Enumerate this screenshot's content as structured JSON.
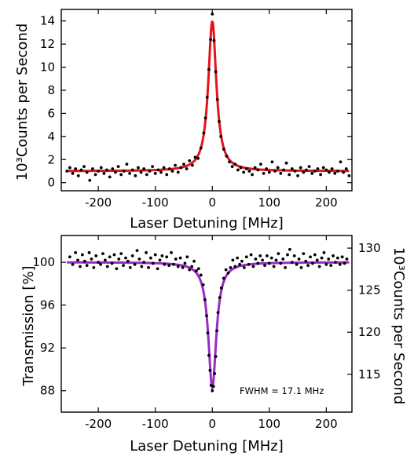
{
  "chart_data": [
    {
      "type": "scatter",
      "xlabel": "Laser Detuning [MHz]",
      "ylabel": "10³Counts per Second",
      "xlim": [
        -265,
        245
      ],
      "ylim": [
        -0.7,
        15
      ],
      "xticks": [
        -200,
        -100,
        0,
        100,
        200
      ],
      "xtick_labels": [
        "-200",
        "-100",
        "0",
        "100",
        "200"
      ],
      "yticks": [
        0,
        2,
        4,
        6,
        8,
        10,
        12,
        14
      ],
      "ytick_labels": [
        "0",
        "2",
        "4",
        "6",
        "8",
        "10",
        "12",
        "14"
      ],
      "grid": false,
      "fit": {
        "model": "lorentzian",
        "center": 0,
        "fwhm": 17.1,
        "baseline": 1.0,
        "peak": 14.0,
        "color": "#e3141b"
      },
      "series": [
        {
          "points": [
            [
              -255,
              1.0
            ],
            [
              -250,
              1.3
            ],
            [
              -245,
              0.8
            ],
            [
              -240,
              1.2
            ],
            [
              -235,
              0.6
            ],
            [
              -230,
              1.1
            ],
            [
              -225,
              1.4
            ],
            [
              -220,
              0.9
            ],
            [
              -215,
              0.2
            ],
            [
              -210,
              1.2
            ],
            [
              -205,
              0.7
            ],
            [
              -200,
              1.0
            ],
            [
              -195,
              1.3
            ],
            [
              -190,
              0.8
            ],
            [
              -185,
              1.1
            ],
            [
              -180,
              0.5
            ],
            [
              -175,
              1.2
            ],
            [
              -170,
              0.9
            ],
            [
              -165,
              1.4
            ],
            [
              -160,
              0.7
            ],
            [
              -155,
              1.0
            ],
            [
              -150,
              1.6
            ],
            [
              -145,
              0.8
            ],
            [
              -140,
              1.1
            ],
            [
              -135,
              0.6
            ],
            [
              -130,
              1.3
            ],
            [
              -125,
              0.9
            ],
            [
              -120,
              1.2
            ],
            [
              -115,
              0.7
            ],
            [
              -110,
              1.0
            ],
            [
              -105,
              1.4
            ],
            [
              -100,
              0.8
            ],
            [
              -95,
              1.1
            ],
            [
              -90,
              0.9
            ],
            [
              -85,
              1.3
            ],
            [
              -80,
              0.7
            ],
            [
              -75,
              1.2
            ],
            [
              -70,
              1.0
            ],
            [
              -65,
              1.5
            ],
            [
              -60,
              0.9
            ],
            [
              -55,
              1.3
            ],
            [
              -50,
              1.6
            ],
            [
              -45,
              1.2
            ],
            [
              -40,
              1.9
            ],
            [
              -35,
              1.5
            ],
            [
              -30,
              2.2
            ],
            [
              -25,
              2.1
            ],
            [
              -20,
              3.0
            ],
            [
              -15,
              4.3
            ],
            [
              -12,
              5.6
            ],
            [
              -9,
              7.4
            ],
            [
              -6,
              9.8
            ],
            [
              -3,
              12.4
            ],
            [
              0,
              14.6
            ],
            [
              3,
              12.3
            ],
            [
              6,
              9.6
            ],
            [
              9,
              7.2
            ],
            [
              12,
              5.3
            ],
            [
              15,
              4.0
            ],
            [
              20,
              2.9
            ],
            [
              25,
              2.3
            ],
            [
              30,
              1.8
            ],
            [
              35,
              1.4
            ],
            [
              40,
              1.6
            ],
            [
              45,
              1.1
            ],
            [
              50,
              1.3
            ],
            [
              55,
              0.9
            ],
            [
              60,
              1.2
            ],
            [
              65,
              1.0
            ],
            [
              70,
              0.7
            ],
            [
              75,
              1.3
            ],
            [
              80,
              1.1
            ],
            [
              85,
              1.6
            ],
            [
              90,
              0.8
            ],
            [
              95,
              1.2
            ],
            [
              100,
              0.9
            ],
            [
              105,
              1.8
            ],
            [
              110,
              1.0
            ],
            [
              115,
              1.3
            ],
            [
              120,
              0.8
            ],
            [
              125,
              1.1
            ],
            [
              130,
              1.7
            ],
            [
              135,
              0.7
            ],
            [
              140,
              1.2
            ],
            [
              145,
              1.0
            ],
            [
              150,
              0.6
            ],
            [
              155,
              1.3
            ],
            [
              160,
              0.9
            ],
            [
              165,
              1.1
            ],
            [
              170,
              1.4
            ],
            [
              175,
              0.8
            ],
            [
              180,
              1.0
            ],
            [
              185,
              1.2
            ],
            [
              190,
              0.7
            ],
            [
              195,
              1.3
            ],
            [
              200,
              1.1
            ],
            [
              205,
              0.9
            ],
            [
              210,
              1.2
            ],
            [
              215,
              0.8
            ],
            [
              220,
              1.0
            ],
            [
              225,
              1.8
            ],
            [
              230,
              0.9
            ],
            [
              235,
              1.2
            ],
            [
              240,
              0.6
            ]
          ]
        }
      ]
    },
    {
      "type": "scatter",
      "xlabel": "Laser Detuning [MHz]",
      "ylabel": "Transmission [%]",
      "y2label": "10³Counts per Second",
      "annotation": "FWHM = 17.1 MHz",
      "xlim": [
        -265,
        245
      ],
      "ylim": [
        86.0,
        102.5
      ],
      "y2lim": [
        110.5,
        131.5
      ],
      "xticks": [
        -200,
        -100,
        0,
        100,
        200
      ],
      "xtick_labels": [
        "-200",
        "-100",
        "0",
        "100",
        "200"
      ],
      "yticks": [
        88,
        92,
        96,
        100
      ],
      "ytick_labels": [
        "88",
        "92",
        "96",
        "100"
      ],
      "y2ticks": [
        115,
        120,
        125,
        130
      ],
      "y2tick_labels": [
        "115",
        "120",
        "125",
        "130"
      ],
      "grid": false,
      "fit": {
        "model": "lorentzian",
        "center": 0,
        "fwhm": 17.1,
        "baseline": 100.0,
        "peak": 88.3,
        "color": "#9a2bc4"
      },
      "series": [
        {
          "points": [
            [
              -250,
              100.5
            ],
            [
              -245,
              99.8
            ],
            [
              -240,
              100.9
            ],
            [
              -236,
              100.2
            ],
            [
              -232,
              99.6
            ],
            [
              -228,
              100.7
            ],
            [
              -224,
              100.1
            ],
            [
              -220,
              99.7
            ],
            [
              -216,
              100.9
            ],
            [
              -212,
              100.3
            ],
            [
              -208,
              99.5
            ],
            [
              -204,
              100.6
            ],
            [
              -200,
              100.0
            ],
            [
              -196,
              99.8
            ],
            [
              -192,
              100.8
            ],
            [
              -188,
              100.2
            ],
            [
              -184,
              99.6
            ],
            [
              -180,
              100.5
            ],
            [
              -176,
              99.9
            ],
            [
              -172,
              100.7
            ],
            [
              -168,
              99.4
            ],
            [
              -164,
              100.3
            ],
            [
              -160,
              100.8
            ],
            [
              -156,
              99.7
            ],
            [
              -152,
              100.4
            ],
            [
              -148,
              100.1
            ],
            [
              -144,
              99.5
            ],
            [
              -140,
              100.6
            ],
            [
              -136,
              99.8
            ],
            [
              -132,
              101.1
            ],
            [
              -128,
              100.3
            ],
            [
              -124,
              99.6
            ],
            [
              -120,
              100.0
            ],
            [
              -116,
              100.9
            ],
            [
              -112,
              99.5
            ],
            [
              -108,
              100.4
            ],
            [
              -104,
              99.9
            ],
            [
              -100,
              100.7
            ],
            [
              -96,
              99.4
            ],
            [
              -92,
              100.2
            ],
            [
              -88,
              100.6
            ],
            [
              -84,
              99.8
            ],
            [
              -80,
              100.5
            ],
            [
              -76,
              99.7
            ],
            [
              -72,
              100.9
            ],
            [
              -68,
              99.8
            ],
            [
              -64,
              100.3
            ],
            [
              -60,
              99.6
            ],
            [
              -56,
              100.4
            ],
            [
              -52,
              99.5
            ],
            [
              -48,
              99.9
            ],
            [
              -44,
              100.5
            ],
            [
              -40,
              99.3
            ],
            [
              -36,
              99.6
            ],
            [
              -32,
              100.1
            ],
            [
              -28,
              99.2
            ],
            [
              -24,
              99.4
            ],
            [
              -20,
              98.8
            ],
            [
              -16,
              97.9
            ],
            [
              -13,
              96.5
            ],
            [
              -10,
              95.0
            ],
            [
              -8,
              93.4
            ],
            [
              -6,
              91.3
            ],
            [
              -4,
              89.9
            ],
            [
              -2,
              88.5
            ],
            [
              0,
              88.0
            ],
            [
              2,
              88.4
            ],
            [
              4,
              89.6
            ],
            [
              6,
              91.2
            ],
            [
              8,
              93.6
            ],
            [
              10,
              95.3
            ],
            [
              13,
              96.7
            ],
            [
              16,
              97.6
            ],
            [
              20,
              98.5
            ],
            [
              24,
              99.3
            ],
            [
              28,
              99.0
            ],
            [
              32,
              99.5
            ],
            [
              36,
              100.2
            ],
            [
              40,
              99.6
            ],
            [
              44,
              100.4
            ],
            [
              48,
              99.8
            ],
            [
              52,
              100.1
            ],
            [
              56,
              99.5
            ],
            [
              60,
              100.5
            ],
            [
              64,
              99.8
            ],
            [
              68,
              100.7
            ],
            [
              72,
              99.6
            ],
            [
              76,
              100.3
            ],
            [
              80,
              99.9
            ],
            [
              84,
              100.6
            ],
            [
              88,
              100.2
            ],
            [
              92,
              99.7
            ],
            [
              96,
              100.6
            ],
            [
              100,
              99.9
            ],
            [
              104,
              100.4
            ],
            [
              108,
              99.6
            ],
            [
              112,
              100.2
            ],
            [
              116,
              100.8
            ],
            [
              120,
              99.9
            ],
            [
              124,
              100.3
            ],
            [
              128,
              99.5
            ],
            [
              132,
              100.7
            ],
            [
              136,
              101.2
            ],
            [
              140,
              100.0
            ],
            [
              144,
              100.6
            ],
            [
              148,
              99.8
            ],
            [
              152,
              100.3
            ],
            [
              156,
              99.5
            ],
            [
              160,
              100.8
            ],
            [
              164,
              100.1
            ],
            [
              168,
              99.7
            ],
            [
              172,
              100.5
            ],
            [
              176,
              99.9
            ],
            [
              180,
              100.7
            ],
            [
              184,
              100.2
            ],
            [
              188,
              99.6
            ],
            [
              192,
              100.4
            ],
            [
              196,
              100.9
            ],
            [
              200,
              99.8
            ],
            [
              204,
              100.3
            ],
            [
              208,
              99.7
            ],
            [
              212,
              100.6
            ],
            [
              216,
              100.0
            ],
            [
              220,
              100.4
            ],
            [
              224,
              99.8
            ],
            [
              228,
              100.5
            ],
            [
              232,
              99.9
            ],
            [
              236,
              100.3
            ]
          ]
        }
      ]
    }
  ]
}
